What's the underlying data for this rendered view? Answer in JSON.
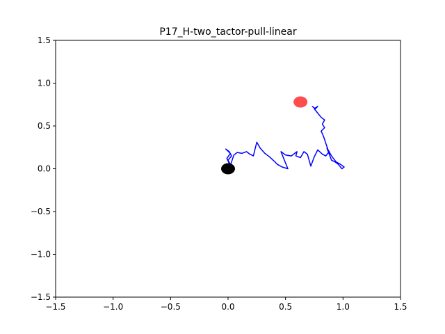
{
  "chart_data": {
    "type": "line",
    "title": "P17_H-two_tactor-pull-linear",
    "xlabel": "",
    "ylabel": "",
    "xlim": [
      -1.5,
      1.5
    ],
    "ylim": [
      -1.5,
      1.5
    ],
    "xticks": [
      -1.5,
      -1.0,
      -0.5,
      0.0,
      0.5,
      1.0,
      1.5
    ],
    "yticks": [
      -1.5,
      -1.0,
      -0.5,
      0.0,
      0.5,
      1.0,
      1.5
    ],
    "xtick_labels": [
      "−1.5",
      "−1.0",
      "−0.5",
      "0.0",
      "0.5",
      "1.0",
      "1.5"
    ],
    "ytick_labels": [
      "−1.5",
      "−1.0",
      "−0.5",
      "0.0",
      "0.5",
      "1.0",
      "1.5"
    ],
    "grid": false,
    "series": [
      {
        "color": "#0000ff",
        "points": [
          [
            0.0,
            0.0
          ],
          [
            0.01,
            0.06
          ],
          [
            -0.01,
            0.12
          ],
          [
            0.02,
            0.18
          ],
          [
            -0.02,
            0.23
          ],
          [
            0.01,
            0.2
          ],
          [
            0.03,
            0.15
          ],
          [
            0.0,
            0.1
          ],
          [
            0.02,
            0.05
          ],
          [
            0.0,
            -0.02
          ],
          [
            0.03,
            0.08
          ],
          [
            0.05,
            0.16
          ],
          [
            0.08,
            0.19
          ],
          [
            0.12,
            0.18
          ],
          [
            0.16,
            0.2
          ],
          [
            0.19,
            0.17
          ],
          [
            0.22,
            0.15
          ],
          [
            0.25,
            0.31
          ],
          [
            0.28,
            0.24
          ],
          [
            0.32,
            0.18
          ],
          [
            0.36,
            0.14
          ],
          [
            0.4,
            0.09
          ],
          [
            0.43,
            0.05
          ],
          [
            0.47,
            0.02
          ],
          [
            0.52,
            0.0
          ],
          [
            0.49,
            0.1
          ],
          [
            0.46,
            0.2
          ],
          [
            0.5,
            0.16
          ],
          [
            0.55,
            0.15
          ],
          [
            0.6,
            0.2
          ],
          [
            0.59,
            0.15
          ],
          [
            0.63,
            0.13
          ],
          [
            0.66,
            0.2
          ],
          [
            0.69,
            0.17
          ],
          [
            0.72,
            0.03
          ],
          [
            0.75,
            0.14
          ],
          [
            0.78,
            0.22
          ],
          [
            0.82,
            0.17
          ],
          [
            0.85,
            0.15
          ],
          [
            0.88,
            0.2
          ],
          [
            0.86,
            0.24
          ],
          [
            0.9,
            0.1
          ],
          [
            0.93,
            0.08
          ],
          [
            0.96,
            0.05
          ],
          [
            0.99,
            0.0
          ],
          [
            1.01,
            0.02
          ],
          [
            0.98,
            0.05
          ],
          [
            0.94,
            0.08
          ],
          [
            0.9,
            0.15
          ],
          [
            0.87,
            0.22
          ],
          [
            0.85,
            0.3
          ],
          [
            0.83,
            0.38
          ],
          [
            0.81,
            0.44
          ],
          [
            0.84,
            0.48
          ],
          [
            0.82,
            0.52
          ],
          [
            0.84,
            0.57
          ],
          [
            0.81,
            0.6
          ],
          [
            0.78,
            0.65
          ],
          [
            0.75,
            0.7
          ],
          [
            0.78,
            0.73
          ],
          [
            0.76,
            0.7
          ],
          [
            0.73,
            0.73
          ]
        ]
      }
    ],
    "markers": [
      {
        "label": "start",
        "x": 0.0,
        "y": 0.0,
        "color": "#000000"
      },
      {
        "label": "target",
        "x": 0.63,
        "y": 0.78,
        "color": "#ff0000"
      }
    ]
  }
}
